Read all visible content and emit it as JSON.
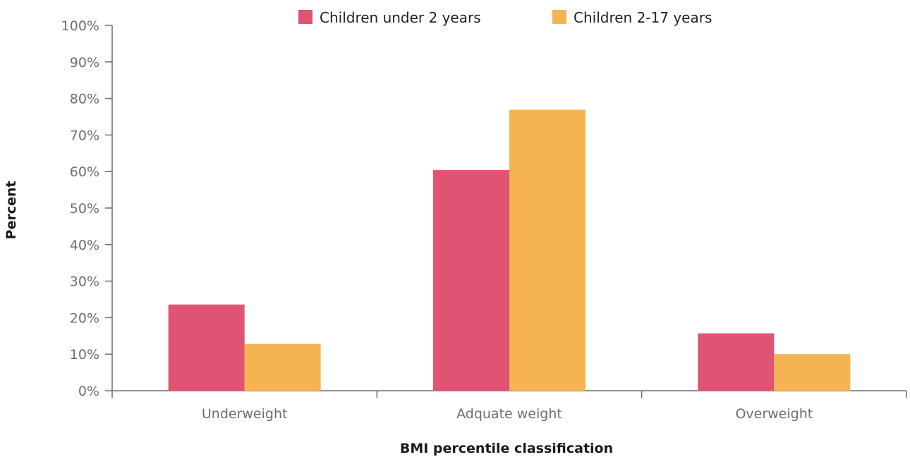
{
  "chart_data": {
    "type": "bar",
    "title": "",
    "xlabel": "BMI percentile classification",
    "ylabel": "Percent",
    "categories": [
      "Underweight",
      "Adquate weight",
      "Overweight"
    ],
    "series": [
      {
        "name": "Children under 2 years",
        "color": "#e05372",
        "values": [
          23.6,
          60.4,
          15.7
        ]
      },
      {
        "name": "Children 2-17 years",
        "color": "#f5b451",
        "values": [
          12.8,
          76.9,
          10.0
        ]
      }
    ],
    "ylim": [
      0,
      100
    ],
    "yticks": [
      "0%",
      "10%",
      "20%",
      "30%",
      "40%",
      "50%",
      "60%",
      "70%",
      "80%",
      "90%",
      "100%"
    ],
    "grid": false,
    "legend_position": "top"
  }
}
